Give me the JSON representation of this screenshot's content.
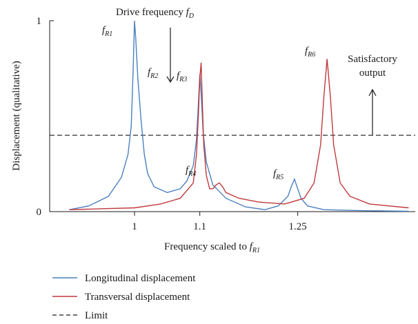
{
  "chart_data": {
    "type": "line",
    "x_label_text": "Frequency scaled to ",
    "x_label_var": "f",
    "x_label_sub": "R1",
    "y_label": "Displacement (qualitative)",
    "x_ticks": [
      {
        "value": 1.0,
        "label": "1"
      },
      {
        "value": 1.1,
        "label": "1.1"
      },
      {
        "value": 1.25,
        "label": "1.25"
      }
    ],
    "y_ticks": [
      {
        "value": 0,
        "label": "0"
      },
      {
        "value": 1,
        "label": "1"
      }
    ],
    "xlim": [
      0.87,
      1.43
    ],
    "ylim": [
      0,
      1
    ],
    "limit_value": 0.4,
    "series": [
      {
        "name": "Longitudinal displacement",
        "color": "#4a7fc1",
        "points": [
          [
            0.9,
            0.01
          ],
          [
            0.93,
            0.03
          ],
          [
            0.96,
            0.08
          ],
          [
            0.98,
            0.18
          ],
          [
            0.99,
            0.3
          ],
          [
            0.995,
            0.45
          ],
          [
            0.998,
            0.75
          ],
          [
            1.0,
            1.0
          ],
          [
            1.002,
            0.9
          ],
          [
            1.005,
            0.7
          ],
          [
            1.01,
            0.48
          ],
          [
            1.015,
            0.3
          ],
          [
            1.02,
            0.2
          ],
          [
            1.03,
            0.13
          ],
          [
            1.05,
            0.1
          ],
          [
            1.07,
            0.12
          ],
          [
            1.08,
            0.16
          ],
          [
            1.09,
            0.24
          ],
          [
            1.095,
            0.38
          ],
          [
            1.098,
            0.58
          ],
          [
            1.1,
            0.72
          ],
          [
            1.102,
            0.62
          ],
          [
            1.105,
            0.42
          ],
          [
            1.11,
            0.26
          ],
          [
            1.12,
            0.14
          ],
          [
            1.14,
            0.07
          ],
          [
            1.17,
            0.025
          ],
          [
            1.2,
            0.01
          ],
          [
            1.22,
            0.03
          ],
          [
            1.235,
            0.08
          ],
          [
            1.24,
            0.13
          ],
          [
            1.245,
            0.17
          ],
          [
            1.25,
            0.12
          ],
          [
            1.255,
            0.07
          ],
          [
            1.265,
            0.03
          ],
          [
            1.29,
            0.01
          ],
          [
            1.35,
            0.005
          ],
          [
            1.42,
            0.002
          ]
        ]
      },
      {
        "name": "Transversal displacement",
        "color": "#c0393b",
        "points": [
          [
            0.9,
            0.01
          ],
          [
            0.95,
            0.015
          ],
          [
            1.0,
            0.02
          ],
          [
            1.04,
            0.04
          ],
          [
            1.07,
            0.07
          ],
          [
            1.09,
            0.15
          ],
          [
            1.095,
            0.3
          ],
          [
            1.098,
            0.52
          ],
          [
            1.1,
            0.7
          ],
          [
            1.102,
            0.78
          ],
          [
            1.104,
            0.55
          ],
          [
            1.106,
            0.35
          ],
          [
            1.11,
            0.19
          ],
          [
            1.115,
            0.12
          ],
          [
            1.12,
            0.12
          ],
          [
            1.125,
            0.14
          ],
          [
            1.13,
            0.15
          ],
          [
            1.135,
            0.13
          ],
          [
            1.14,
            0.1
          ],
          [
            1.16,
            0.07
          ],
          [
            1.19,
            0.05
          ],
          [
            1.23,
            0.04
          ],
          [
            1.26,
            0.07
          ],
          [
            1.275,
            0.15
          ],
          [
            1.285,
            0.35
          ],
          [
            1.29,
            0.6
          ],
          [
            1.295,
            0.8
          ],
          [
            1.3,
            0.6
          ],
          [
            1.305,
            0.35
          ],
          [
            1.315,
            0.15
          ],
          [
            1.33,
            0.08
          ],
          [
            1.36,
            0.04
          ],
          [
            1.42,
            0.02
          ]
        ]
      }
    ],
    "limit_color": "#1a1a1a",
    "annotations": {
      "drive_text": "Drive frequency ",
      "drive_var": "f",
      "drive_sub": "D",
      "satisfactory_line1": "Satisfactory",
      "satisfactory_line2": "output",
      "fr1_var": "f",
      "fr1_sub": "R1",
      "fr2_var": "f",
      "fr2_sub": "R2",
      "fr3_var": "f",
      "fr3_sub": "R3",
      "fr4_var": "f",
      "fr4_sub": "R4",
      "fr5_var": "f",
      "fr5_sub": "R5",
      "fr6_var": "f",
      "fr6_sub": "R6"
    },
    "legend": [
      {
        "label": "Longitudinal displacement",
        "color": "#4a7fc1",
        "style": "solid"
      },
      {
        "label": "Transversal displacement",
        "color": "#c0393b",
        "style": "solid"
      },
      {
        "label": "Limit",
        "color": "#1a1a1a",
        "style": "dashed"
      }
    ],
    "legend_position": "bottom-left"
  }
}
